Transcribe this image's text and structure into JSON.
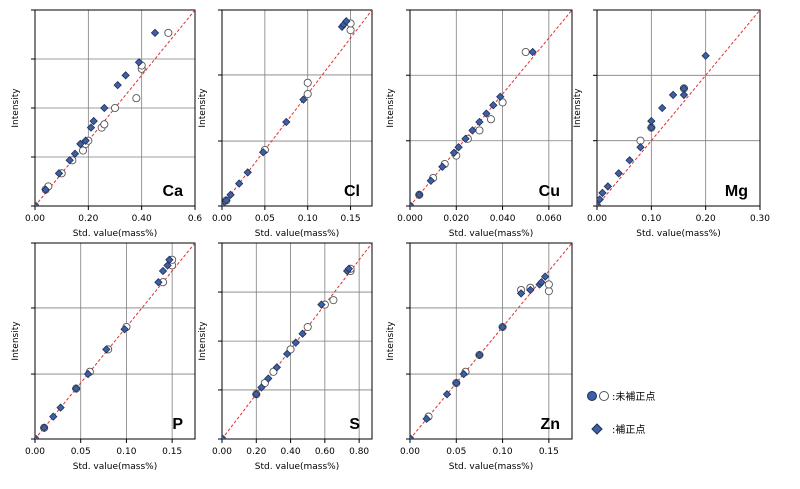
{
  "chart_data": [
    {
      "type": "scatter",
      "element_label": "Ca",
      "xlabel": "Std. value(mass%)",
      "ylabel": "Intensity",
      "xlim": [
        0,
        0.6
      ],
      "ylim": [
        0,
        0.6
      ],
      "xticks": [
        0,
        0.2,
        0.4,
        0.6
      ],
      "xtick_labels": [
        "0.00",
        "0.20",
        "0.40",
        "0.6"
      ],
      "yticks": [
        0,
        0.15,
        0.3,
        0.45,
        0.6
      ],
      "series": [
        {
          "name": "未補正点",
          "marker": "circle",
          "x": [
            0,
            0.04,
            0.05,
            0.1,
            0.14,
            0.18,
            0.19,
            0.2,
            0.25,
            0.26,
            0.3,
            0.38,
            0.4,
            0.4,
            0.5
          ],
          "y": [
            0,
            0.05,
            0.06,
            0.1,
            0.14,
            0.17,
            0.19,
            0.2,
            0.24,
            0.25,
            0.3,
            0.33,
            0.42,
            0.43,
            0.53
          ]
        },
        {
          "name": "補正点",
          "marker": "diamond",
          "x": [
            0,
            0.04,
            0.09,
            0.13,
            0.15,
            0.17,
            0.19,
            0.21,
            0.22,
            0.26,
            0.31,
            0.34,
            0.39,
            0.45
          ],
          "y": [
            0,
            0.05,
            0.1,
            0.14,
            0.16,
            0.19,
            0.2,
            0.24,
            0.26,
            0.3,
            0.37,
            0.4,
            0.44,
            0.53
          ]
        }
      ]
    },
    {
      "type": "scatter",
      "element_label": "Cl",
      "xlabel": "Std. value(mass%)",
      "ylabel": "Intensity",
      "xlim": [
        0,
        0.175
      ],
      "ylim": [
        0,
        0.175
      ],
      "xticks": [
        0,
        0.05,
        0.1,
        0.15
      ],
      "xtick_labels": [
        "0.00",
        "0.05",
        "0.10",
        "0.15"
      ],
      "yticks": [
        0,
        0.058,
        0.117,
        0.175
      ],
      "series": [
        {
          "name": "未補正点",
          "marker": "circle",
          "x": [
            0,
            0.005,
            0.05,
            0.1,
            0.1,
            0.15,
            0.15
          ],
          "y": [
            0,
            0.005,
            0.05,
            0.11,
            0.1,
            0.157,
            0.163
          ]
        },
        {
          "name": "補正点",
          "marker": "diamond",
          "x": [
            0,
            0.005,
            0.01,
            0.02,
            0.03,
            0.048,
            0.075,
            0.095,
            0.14,
            0.142,
            0.145
          ],
          "y": [
            0,
            0.005,
            0.01,
            0.02,
            0.03,
            0.048,
            0.075,
            0.095,
            0.16,
            0.162,
            0.165
          ]
        }
      ]
    },
    {
      "type": "scatter",
      "element_label": "Cu",
      "xlabel": "Std. value(mass%)",
      "ylabel": "Intensity",
      "xlim": [
        0,
        0.07
      ],
      "ylim": [
        0,
        0.07
      ],
      "xticks": [
        0,
        0.02,
        0.04,
        0.06
      ],
      "xtick_labels": [
        "0.000",
        "0.020",
        "0.040",
        "0.060"
      ],
      "yticks": [
        0,
        0.0233,
        0.0467,
        0.07
      ],
      "series": [
        {
          "name": "未補正点",
          "marker": "circle",
          "x": [
            0,
            0.004,
            0.01,
            0.015,
            0.02,
            0.025,
            0.03,
            0.035,
            0.04,
            0.05
          ],
          "y": [
            0,
            0.004,
            0.01,
            0.015,
            0.018,
            0.024,
            0.027,
            0.031,
            0.037,
            0.055
          ]
        },
        {
          "name": "補正点",
          "marker": "diamond",
          "x": [
            0,
            0.004,
            0.009,
            0.014,
            0.019,
            0.021,
            0.024,
            0.027,
            0.03,
            0.033,
            0.036,
            0.039,
            0.053
          ],
          "y": [
            0,
            0.004,
            0.009,
            0.014,
            0.019,
            0.021,
            0.024,
            0.027,
            0.03,
            0.033,
            0.036,
            0.039,
            0.055
          ]
        }
      ]
    },
    {
      "type": "scatter",
      "element_label": "Mg",
      "xlabel": "Std. value(mass%)",
      "ylabel": "Intensity",
      "xlim": [
        0,
        0.3
      ],
      "ylim": [
        0,
        0.3
      ],
      "xticks": [
        0,
        0.1,
        0.2,
        0.3
      ],
      "xtick_labels": [
        "0.00",
        "0.10",
        "0.20",
        "0.30"
      ],
      "yticks": [
        0,
        0.1,
        0.2,
        0.3
      ],
      "series": [
        {
          "name": "未補正点",
          "marker": "circle",
          "x": [
            0,
            0.08,
            0.1,
            0.16
          ],
          "y": [
            0,
            0.1,
            0.12,
            0.18
          ]
        },
        {
          "name": "補正点",
          "marker": "diamond",
          "x": [
            0,
            0.005,
            0.01,
            0.02,
            0.04,
            0.06,
            0.08,
            0.1,
            0.1,
            0.12,
            0.14,
            0.16,
            0.16,
            0.2
          ],
          "y": [
            0,
            0.01,
            0.02,
            0.03,
            0.05,
            0.07,
            0.09,
            0.12,
            0.13,
            0.15,
            0.17,
            0.17,
            0.18,
            0.23
          ]
        }
      ]
    },
    {
      "type": "scatter",
      "element_label": "P",
      "xlabel": "Std. value(mass%)",
      "ylabel": "Intensity",
      "xlim": [
        0,
        0.175
      ],
      "ylim": [
        0,
        0.175
      ],
      "xticks": [
        0,
        0.05,
        0.1,
        0.15
      ],
      "xtick_labels": [
        "0.00",
        "0.05",
        "0.10",
        "0.15"
      ],
      "yticks": [
        0,
        0.058,
        0.117,
        0.175
      ],
      "series": [
        {
          "name": "未補正点",
          "marker": "circle",
          "x": [
            0,
            0.01,
            0.045,
            0.06,
            0.08,
            0.1,
            0.14,
            0.15,
            0.15
          ],
          "y": [
            0,
            0.01,
            0.045,
            0.06,
            0.08,
            0.1,
            0.14,
            0.155,
            0.16
          ]
        },
        {
          "name": "補正点",
          "marker": "diamond",
          "x": [
            0,
            0.01,
            0.02,
            0.028,
            0.045,
            0.058,
            0.078,
            0.098,
            0.135,
            0.14,
            0.145,
            0.147
          ],
          "y": [
            0,
            0.01,
            0.02,
            0.028,
            0.045,
            0.058,
            0.08,
            0.098,
            0.14,
            0.15,
            0.155,
            0.16
          ]
        }
      ]
    },
    {
      "type": "scatter",
      "element_label": "S",
      "xlabel": "Std. value(mass%)",
      "ylabel": "Intensity",
      "xlim": [
        0,
        0.875
      ],
      "ylim": [
        0,
        0.875
      ],
      "xticks": [
        0,
        0.2,
        0.4,
        0.6,
        0.8
      ],
      "xtick_labels": [
        "0.00",
        "0.20",
        "0.40",
        "0.60",
        "0.80"
      ],
      "yticks": [
        0,
        0.219,
        0.437,
        0.656,
        0.875
      ],
      "series": [
        {
          "name": "未補正点",
          "marker": "circle",
          "x": [
            0,
            0.2,
            0.25,
            0.3,
            0.4,
            0.5,
            0.6,
            0.65,
            0.75,
            0.75
          ],
          "y": [
            0,
            0.2,
            0.25,
            0.3,
            0.4,
            0.5,
            0.6,
            0.62,
            0.75,
            0.76
          ]
        },
        {
          "name": "補正点",
          "marker": "diamond",
          "x": [
            0,
            0.2,
            0.23,
            0.27,
            0.32,
            0.38,
            0.43,
            0.47,
            0.58,
            0.73,
            0.74
          ],
          "y": [
            0,
            0.2,
            0.23,
            0.27,
            0.32,
            0.38,
            0.43,
            0.47,
            0.6,
            0.75,
            0.76
          ]
        }
      ]
    },
    {
      "type": "scatter",
      "element_label": "Zn",
      "xlabel": "Std. value(mass%)",
      "ylabel": "Intensity",
      "xlim": [
        0,
        0.175
      ],
      "ylim": [
        0,
        0.175
      ],
      "xticks": [
        0,
        0.05,
        0.1,
        0.15
      ],
      "xtick_labels": [
        "0.00",
        "0.05",
        "0.10",
        "0.15"
      ],
      "yticks": [
        0,
        0.058,
        0.117,
        0.175
      ],
      "series": [
        {
          "name": "未補正点",
          "marker": "circle",
          "x": [
            0,
            0.02,
            0.05,
            0.06,
            0.075,
            0.1,
            0.12,
            0.13,
            0.15,
            0.15
          ],
          "y": [
            0,
            0.02,
            0.05,
            0.06,
            0.075,
            0.1,
            0.133,
            0.135,
            0.132,
            0.138
          ]
        },
        {
          "name": "補正点",
          "marker": "diamond",
          "x": [
            0,
            0.018,
            0.04,
            0.05,
            0.058,
            0.075,
            0.1,
            0.12,
            0.13,
            0.14,
            0.142,
            0.146
          ],
          "y": [
            0,
            0.018,
            0.04,
            0.05,
            0.058,
            0.075,
            0.1,
            0.13,
            0.133,
            0.138,
            0.14,
            0.145
          ]
        }
      ]
    }
  ],
  "legend": {
    "position": "right",
    "items": [
      {
        "label": ":未補正点",
        "marker": "circle-pair"
      },
      {
        "label": ":補正点",
        "marker": "diamond"
      }
    ]
  },
  "colors": {
    "filled_marker": "#3d5fa8",
    "marker_edge": "#1f2f52",
    "open_marker_edge": "#555555",
    "fit_line": "#e03030",
    "grid": "#7f7f7f",
    "axis": "#000000"
  }
}
